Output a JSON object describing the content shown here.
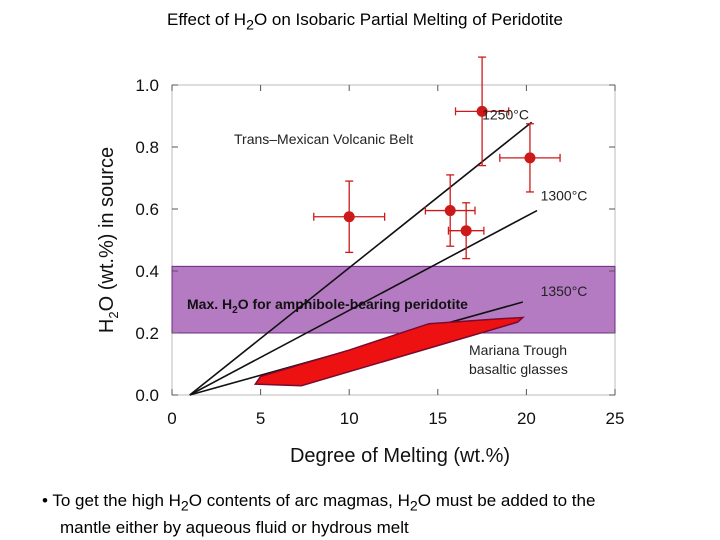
{
  "slide": {
    "title_pre": "Effect of H",
    "title_sub": "2",
    "title_post": "O on Isobaric Partial Melting of Peridotite",
    "bullet_pre": "• To get the high H",
    "bullet_sub1": "2",
    "bullet_mid": "O contents of arc magmas, H",
    "bullet_sub2": "2",
    "bullet_post1": "O must be added to the",
    "bullet_line2": "mantle either by aqueous fluid or hydrous melt"
  },
  "chart_data": {
    "type": "scatter",
    "title": "Effect of H2O on Isobaric Partial Melting of Peridotite",
    "xlabel": "Degree of Melting (wt.%)",
    "ylabel_pre": "H",
    "ylabel_sub": "2",
    "ylabel_post": "O (wt.%) in source",
    "xlim": [
      0,
      25
    ],
    "ylim": [
      0,
      1.0
    ],
    "xticks": [
      "0",
      "5",
      "10",
      "15",
      "20",
      "25"
    ],
    "yticks": [
      "0.0",
      "0.2",
      "0.4",
      "0.6",
      "0.8",
      "1.0"
    ],
    "series": [
      {
        "name": "Trans–Mexican Volcanic Belt",
        "label": "Trans–Mexican Volcanic Belt",
        "points": [
          {
            "x": 10.0,
            "y": 0.575,
            "xerr": 2.0,
            "yerr": 0.115
          },
          {
            "x": 15.7,
            "y": 0.595,
            "xerr": 1.4,
            "yerr": 0.115
          },
          {
            "x": 17.5,
            "y": 0.915,
            "xerr": 1.5,
            "yerr": 0.175
          },
          {
            "x": 16.6,
            "y": 0.53,
            "xerr": 1.0,
            "yerr": 0.09
          },
          {
            "x": 20.2,
            "y": 0.765,
            "xerr": 1.7,
            "yerr": 0.11
          }
        ]
      },
      {
        "name": "Mariana Trough basaltic glasses",
        "label_line1": "Mariana Trough",
        "label_line2": "basaltic glasses",
        "polygon": [
          [
            4.7,
            0.035
          ],
          [
            7.3,
            0.03
          ],
          [
            19.5,
            0.235
          ],
          [
            19.8,
            0.25
          ],
          [
            18.3,
            0.245
          ],
          [
            14.5,
            0.23
          ],
          [
            10.0,
            0.145
          ],
          [
            5.0,
            0.06
          ]
        ]
      }
    ],
    "isotherms": [
      {
        "label": "1250°C",
        "from": [
          1.0,
          0.0
        ],
        "to": [
          20.3,
          0.88
        ],
        "label_at": [
          17.5,
          0.888
        ]
      },
      {
        "label": "1300°C",
        "from": [
          1.0,
          0.0
        ],
        "to": [
          20.6,
          0.595
        ],
        "label_at": [
          20.8,
          0.628
        ]
      },
      {
        "label": "1350°C",
        "from": [
          1.0,
          0.0
        ],
        "to": [
          19.8,
          0.3
        ],
        "label_at": [
          20.8,
          0.32
        ]
      }
    ],
    "band": {
      "label_pre": "Max. H",
      "label_sub": "2",
      "label_post": "O for amphibole-bearing peridotite",
      "ymin": 0.2,
      "ymax": 0.415
    }
  }
}
